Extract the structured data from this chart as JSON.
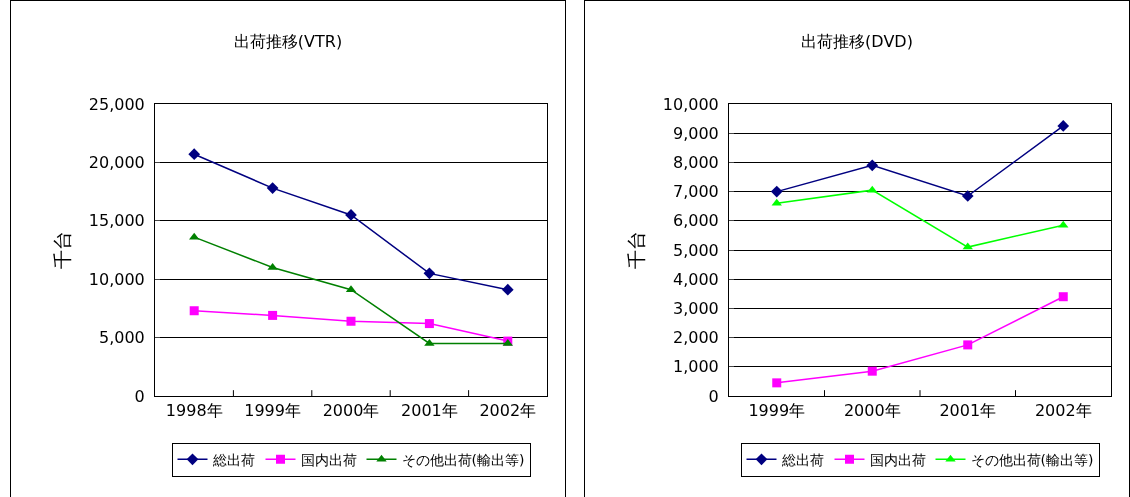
{
  "chart_data": [
    {
      "type": "line",
      "title": "出荷推移(VTR)",
      "ylabel": "千台",
      "categories": [
        "1998年",
        "1999年",
        "2000年",
        "2001年",
        "2002年"
      ],
      "ylim": [
        0,
        25000
      ],
      "yticks": [
        {
          "value": 0,
          "label": "0"
        },
        {
          "value": 5000,
          "label": "5,000"
        },
        {
          "value": 10000,
          "label": "10,000"
        },
        {
          "value": 15000,
          "label": "15,000"
        },
        {
          "value": 20000,
          "label": "20,000"
        },
        {
          "value": 25000,
          "label": "25,000"
        }
      ],
      "grid": "y",
      "legend": "bottom",
      "line_style": "solid",
      "series": [
        {
          "name": "総出荷",
          "color": "#000080",
          "marker": "diamond",
          "values": [
            20700,
            17800,
            15500,
            10500,
            9100
          ]
        },
        {
          "name": "国内出荷",
          "color": "#ff00ff",
          "marker": "square",
          "values": [
            7300,
            6900,
            6400,
            6200,
            4700
          ]
        },
        {
          "name": "その他出荷(輸出等)",
          "color": "#008000",
          "marker": "triangle",
          "values": [
            13600,
            11000,
            9100,
            4500,
            4500
          ]
        }
      ]
    },
    {
      "type": "line",
      "title": "出荷推移(DVD)",
      "ylabel": "千台",
      "categories": [
        "1999年",
        "2000年",
        "2001年",
        "2002年"
      ],
      "ylim": [
        0,
        10000
      ],
      "yticks": [
        {
          "value": 0,
          "label": "0"
        },
        {
          "value": 1000,
          "label": "1,000"
        },
        {
          "value": 2000,
          "label": "2,000"
        },
        {
          "value": 3000,
          "label": "3,000"
        },
        {
          "value": 4000,
          "label": "4,000"
        },
        {
          "value": 5000,
          "label": "5,000"
        },
        {
          "value": 6000,
          "label": "6,000"
        },
        {
          "value": 7000,
          "label": "7,000"
        },
        {
          "value": 8000,
          "label": "8,000"
        },
        {
          "value": 9000,
          "label": "9,000"
        },
        {
          "value": 10000,
          "label": "10,000"
        }
      ],
      "grid": "y",
      "legend": "bottom",
      "line_style": "solid",
      "series": [
        {
          "name": "総出荷",
          "color": "#000080",
          "marker": "diamond",
          "values": [
            7000,
            7900,
            6850,
            9250
          ]
        },
        {
          "name": "国内出荷",
          "color": "#ff00ff",
          "marker": "square",
          "values": [
            450,
            850,
            1750,
            3400
          ]
        },
        {
          "name": "その他出荷(輸出等)",
          "color": "#00ff00",
          "marker": "triangle",
          "values": [
            6600,
            7050,
            5100,
            5850
          ]
        }
      ]
    }
  ]
}
